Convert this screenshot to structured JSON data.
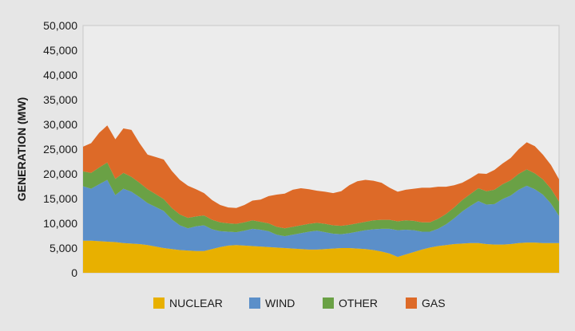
{
  "chart_data": {
    "type": "area",
    "stacked": true,
    "xlabel": "",
    "ylabel": "GENERATION (MW)",
    "ylim": [
      0,
      50000
    ],
    "yticks": [
      0,
      5000,
      10000,
      15000,
      20000,
      25000,
      30000,
      35000,
      40000,
      45000,
      50000
    ],
    "ytick_labels": [
      "0",
      "5,000",
      "10,000",
      "15,000",
      "20,000",
      "25,000",
      "30,000",
      "35,000",
      "40,000",
      "45,000",
      "50,000"
    ],
    "x_ticks_shown": false,
    "grid": false,
    "legend_position": "bottom",
    "x": [
      0,
      1,
      2,
      3,
      4,
      5,
      6,
      7,
      8,
      9,
      10,
      11,
      12,
      13,
      14,
      15,
      16,
      17,
      18,
      19,
      20,
      21,
      22,
      23,
      24,
      25,
      26,
      27,
      28,
      29,
      30,
      31,
      32,
      33,
      34,
      35,
      36,
      37,
      38,
      39,
      40,
      41,
      42,
      43,
      44,
      45,
      46,
      47,
      48,
      49,
      50,
      51,
      52,
      53,
      54,
      55,
      56,
      57,
      58,
      59
    ],
    "series": [
      {
        "name": "NUCLEAR",
        "color": "#e8b000",
        "values": [
          6500,
          6500,
          6400,
          6300,
          6200,
          6000,
          5900,
          5800,
          5600,
          5300,
          5000,
          4800,
          4600,
          4500,
          4400,
          4400,
          4800,
          5200,
          5500,
          5600,
          5500,
          5400,
          5300,
          5200,
          5100,
          5000,
          4900,
          4800,
          4700,
          4700,
          4800,
          4900,
          5000,
          5000,
          4900,
          4800,
          4600,
          4300,
          3900,
          3200,
          3700,
          4200,
          4700,
          5100,
          5400,
          5600,
          5800,
          5900,
          6000,
          6000,
          5800,
          5700,
          5700,
          5800,
          6000,
          6100,
          6100,
          6000,
          6000,
          6000
        ]
      },
      {
        "name": "WIND",
        "color": "#5b8fc9",
        "values": [
          11000,
          10500,
          11500,
          12500,
          9500,
          11000,
          10500,
          9500,
          8500,
          8000,
          7500,
          6000,
          5000,
          4500,
          5000,
          5200,
          4000,
          3200,
          2800,
          2600,
          3000,
          3500,
          3400,
          3200,
          2600,
          2400,
          2800,
          3200,
          3600,
          3800,
          3400,
          3000,
          2800,
          3000,
          3400,
          3800,
          4200,
          4600,
          5000,
          5400,
          5000,
          4400,
          3600,
          3200,
          3500,
          4200,
          5200,
          6500,
          7500,
          8500,
          8000,
          8200,
          9200,
          9800,
          10800,
          11500,
          10800,
          9800,
          8000,
          5500
        ]
      },
      {
        "name": "OTHER",
        "color": "#6aa145",
        "values": [
          3000,
          3200,
          3400,
          3500,
          3300,
          3200,
          3000,
          2900,
          2800,
          2600,
          2400,
          2300,
          2200,
          2100,
          2000,
          2000,
          1900,
          1800,
          1700,
          1700,
          1700,
          1700,
          1600,
          1600,
          1600,
          1600,
          1600,
          1600,
          1600,
          1600,
          1700,
          1700,
          1700,
          1700,
          1700,
          1700,
          1800,
          1800,
          1800,
          1800,
          1900,
          1900,
          1900,
          1900,
          2000,
          2100,
          2200,
          2300,
          2400,
          2600,
          2700,
          2900,
          3000,
          3100,
          3200,
          3300,
          3200,
          3100,
          3000,
          2900
        ]
      },
      {
        "name": "GAS",
        "color": "#dd6a28",
        "values": [
          5000,
          6000,
          7000,
          7500,
          8000,
          9000,
          9500,
          8000,
          7000,
          7500,
          8000,
          7500,
          7000,
          6500,
          5500,
          4500,
          4000,
          3500,
          3200,
          3200,
          3500,
          4000,
          4500,
          5500,
          6500,
          7000,
          7500,
          7500,
          7000,
          6500,
          6500,
          6500,
          7000,
          8000,
          8500,
          8500,
          8000,
          7500,
          6500,
          6000,
          6200,
          6500,
          7000,
          7000,
          6500,
          5500,
          4500,
          3500,
          3200,
          3000,
          3500,
          4000,
          4200,
          4500,
          5000,
          5500,
          5500,
          5000,
          4800,
          4500
        ]
      }
    ]
  }
}
